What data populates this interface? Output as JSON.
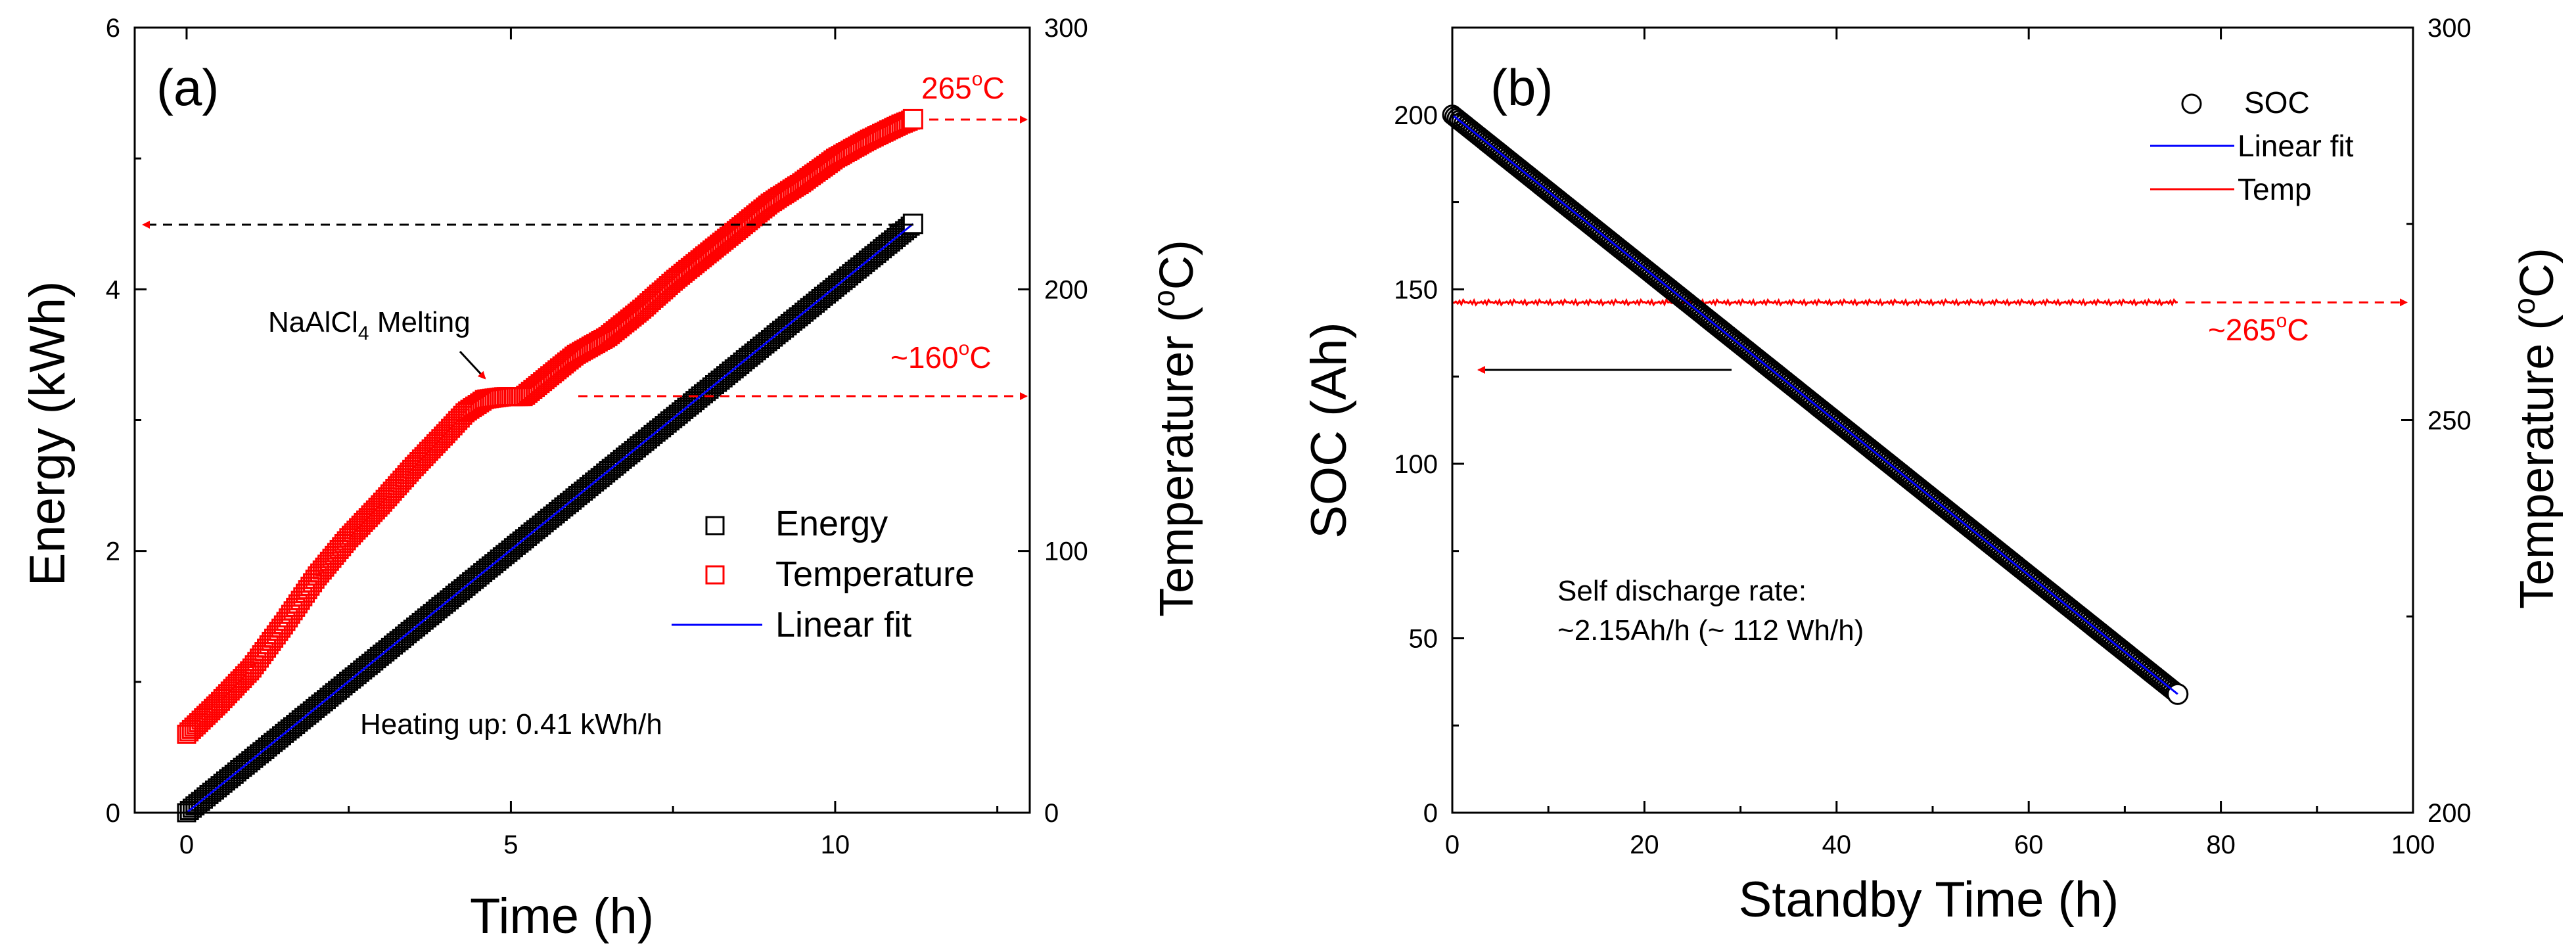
{
  "colors": {
    "axis": "#000000",
    "energy_marker": "#000000",
    "temperature": "#ff0000",
    "fit": "#0000ff"
  },
  "chart_data": [
    {
      "panel": "(a)",
      "type": "scatter",
      "xlabel": "Time (h)",
      "ylabel": "Energy (kWh)",
      "y2label": "Temperaturer (",
      "y2label_sup": "o",
      "y2label_end": "C)",
      "xlim": [
        -0.8,
        13
      ],
      "ylim": [
        0,
        6
      ],
      "y2lim": [
        0,
        300
      ],
      "xticks": [
        0,
        5,
        10
      ],
      "yticks": [
        0,
        2,
        4,
        6
      ],
      "y2ticks": [
        0,
        100,
        200,
        300
      ],
      "legend_position": "center-right",
      "legend": [
        "Energy",
        "Temperature",
        "Linear fit"
      ],
      "series": [
        {
          "name": "Energy",
          "axis": "left",
          "marker": "square-open",
          "x": [
            0,
            11.2
          ],
          "y": [
            0,
            4.5
          ]
        },
        {
          "name": "Temperature",
          "axis": "right",
          "marker": "square-open",
          "x": [
            0,
            0.5,
            1,
            1.5,
            2,
            2.5,
            3,
            3.5,
            4,
            4.3,
            4.6,
            4.9,
            5.2,
            5.5,
            6,
            6.5,
            7,
            7.5,
            8,
            8.5,
            9,
            9.5,
            10,
            10.5,
            11,
            11.2
          ],
          "y": [
            30,
            42,
            55,
            72,
            90,
            105,
            118,
            132,
            145,
            153,
            158,
            159,
            159,
            165,
            175,
            182,
            192,
            203,
            213,
            223,
            233,
            241,
            250,
            257,
            263,
            265
          ]
        },
        {
          "name": "Linear fit",
          "axis": "left",
          "line": "solid",
          "x": [
            0,
            11.2
          ],
          "y": [
            0,
            4.5
          ]
        }
      ],
      "annotations": {
        "melting_main": "NaAlCl",
        "melting_sub": "4",
        "melting_end": " Melting",
        "heating": "Heating up: 0.41 kWh/h",
        "temp_high_main": "265",
        "temp_high_sup": "o",
        "temp_high_end": "C",
        "temp_low_main": "~160",
        "temp_low_sup": "o",
        "temp_low_end": "C"
      }
    },
    {
      "panel": "(b)",
      "type": "scatter",
      "xlabel": "Standby Time (h)",
      "ylabel": "SOC (Ah)",
      "y2label": "Temperature (",
      "y2label_sup": "o",
      "y2label_end": "C)",
      "xlim": [
        0,
        100
      ],
      "ylim": [
        0,
        225
      ],
      "y2lim": [
        200,
        300
      ],
      "xticks": [
        0,
        20,
        40,
        60,
        80,
        100
      ],
      "yticks": [
        0,
        50,
        100,
        150,
        200
      ],
      "y2ticks": [
        200,
        250,
        300
      ],
      "legend_position": "top-right",
      "legend": [
        "SOC",
        "Linear fit",
        "Temp"
      ],
      "series": [
        {
          "name": "SOC",
          "axis": "left",
          "marker": "circle-open",
          "x": [
            0,
            75.5
          ],
          "y": [
            200,
            34
          ]
        },
        {
          "name": "Linear fit",
          "axis": "left",
          "line": "solid",
          "x": [
            0,
            75.5
          ],
          "y": [
            200,
            34
          ]
        },
        {
          "name": "Temp",
          "axis": "right",
          "line": "solid",
          "x": [
            0,
            75.5
          ],
          "y": [
            265,
            265
          ]
        }
      ],
      "annotations": {
        "rate_line1": "Self discharge rate:",
        "rate_line2": "~2.15Ah/h (~ 112 Wh/h)",
        "temp_main": "~265",
        "temp_sup": "o",
        "temp_end": "C"
      }
    }
  ]
}
